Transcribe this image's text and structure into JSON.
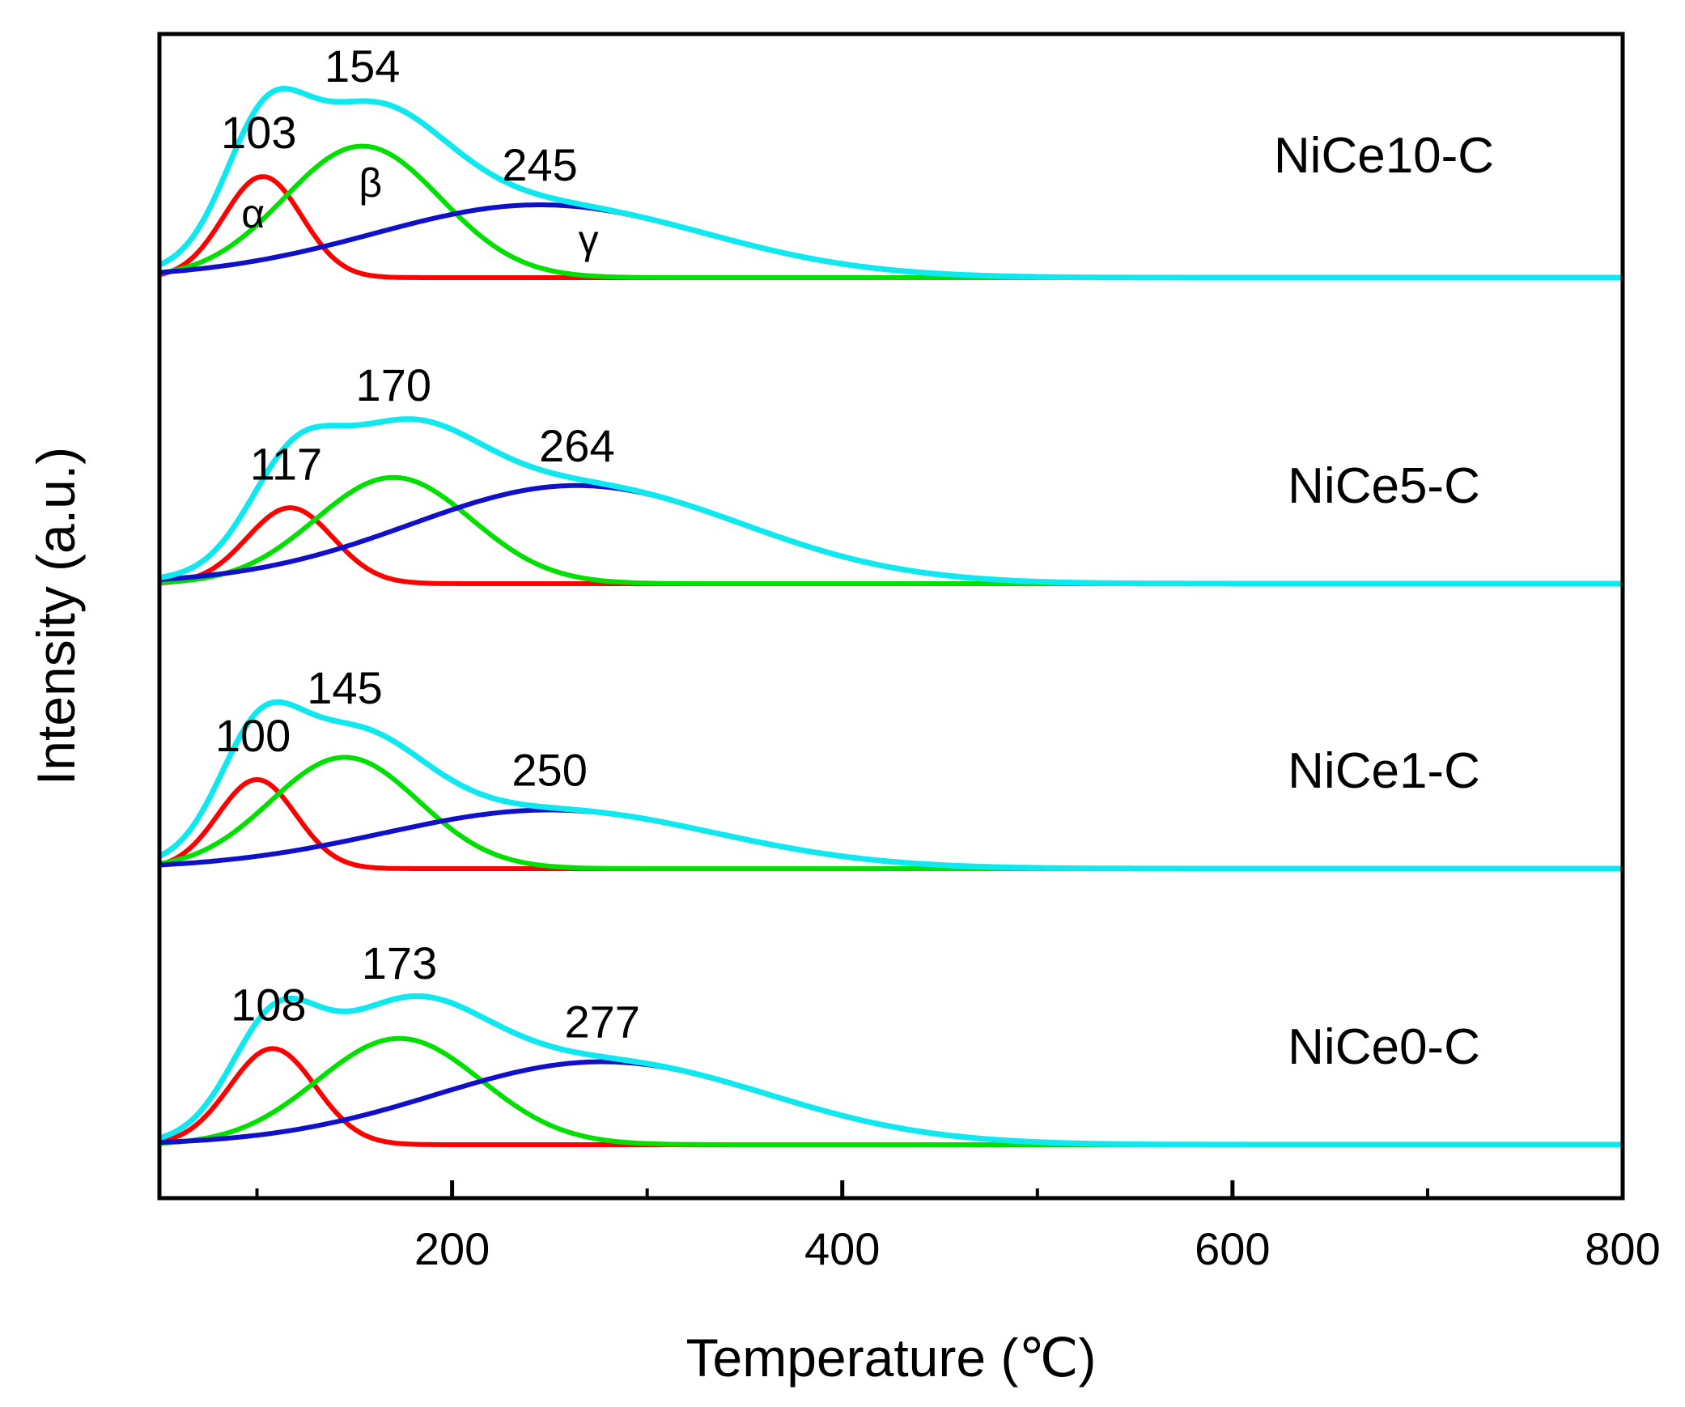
{
  "chart_data": {
    "type": "line",
    "title": "",
    "xlabel": "Temperature (℃)",
    "ylabel": "Intensity (a.u.)",
    "xlim": [
      50,
      800
    ],
    "x_ticks": [
      200,
      400,
      600,
      800
    ],
    "x_minor_ticks": [
      100,
      300,
      500,
      700
    ],
    "peak_colors": {
      "alpha": "#ff0000",
      "beta": "#00e000",
      "gamma": "#1010c8",
      "envelope": "#10e8f0"
    },
    "greek": [
      "α",
      "β",
      "γ"
    ],
    "panels": [
      {
        "sample": "NiCe10-C",
        "peaks": [
          {
            "name": "α",
            "center": 103,
            "label": "103",
            "amp": 1.0,
            "sigma": 20
          },
          {
            "name": "β",
            "center": 154,
            "label": "154",
            "amp": 1.3,
            "sigma": 40
          },
          {
            "name": "γ",
            "center": 245,
            "label": "245",
            "amp": 0.72,
            "sigma": 85
          }
        ]
      },
      {
        "sample": "NiCe5-C",
        "peaks": [
          {
            "name": "α",
            "center": 117,
            "label": "117",
            "amp": 0.75,
            "sigma": 22
          },
          {
            "name": "β",
            "center": 170,
            "label": "170",
            "amp": 1.05,
            "sigma": 40
          },
          {
            "name": "γ",
            "center": 264,
            "label": "264",
            "amp": 0.97,
            "sigma": 85
          }
        ]
      },
      {
        "sample": "NiCe1-C",
        "peaks": [
          {
            "name": "α",
            "center": 100,
            "label": "100",
            "amp": 0.88,
            "sigma": 20
          },
          {
            "name": "β",
            "center": 145,
            "label": "145",
            "amp": 1.1,
            "sigma": 38
          },
          {
            "name": "γ",
            "center": 250,
            "label": "250",
            "amp": 0.58,
            "sigma": 85
          }
        ]
      },
      {
        "sample": "NiCe0-C",
        "peaks": [
          {
            "name": "α",
            "center": 108,
            "label": "108",
            "amp": 0.95,
            "sigma": 22
          },
          {
            "name": "β",
            "center": 173,
            "label": "173",
            "amp": 1.05,
            "sigma": 42
          },
          {
            "name": "γ",
            "center": 277,
            "label": "277",
            "amp": 0.82,
            "sigma": 85
          }
        ]
      }
    ]
  }
}
